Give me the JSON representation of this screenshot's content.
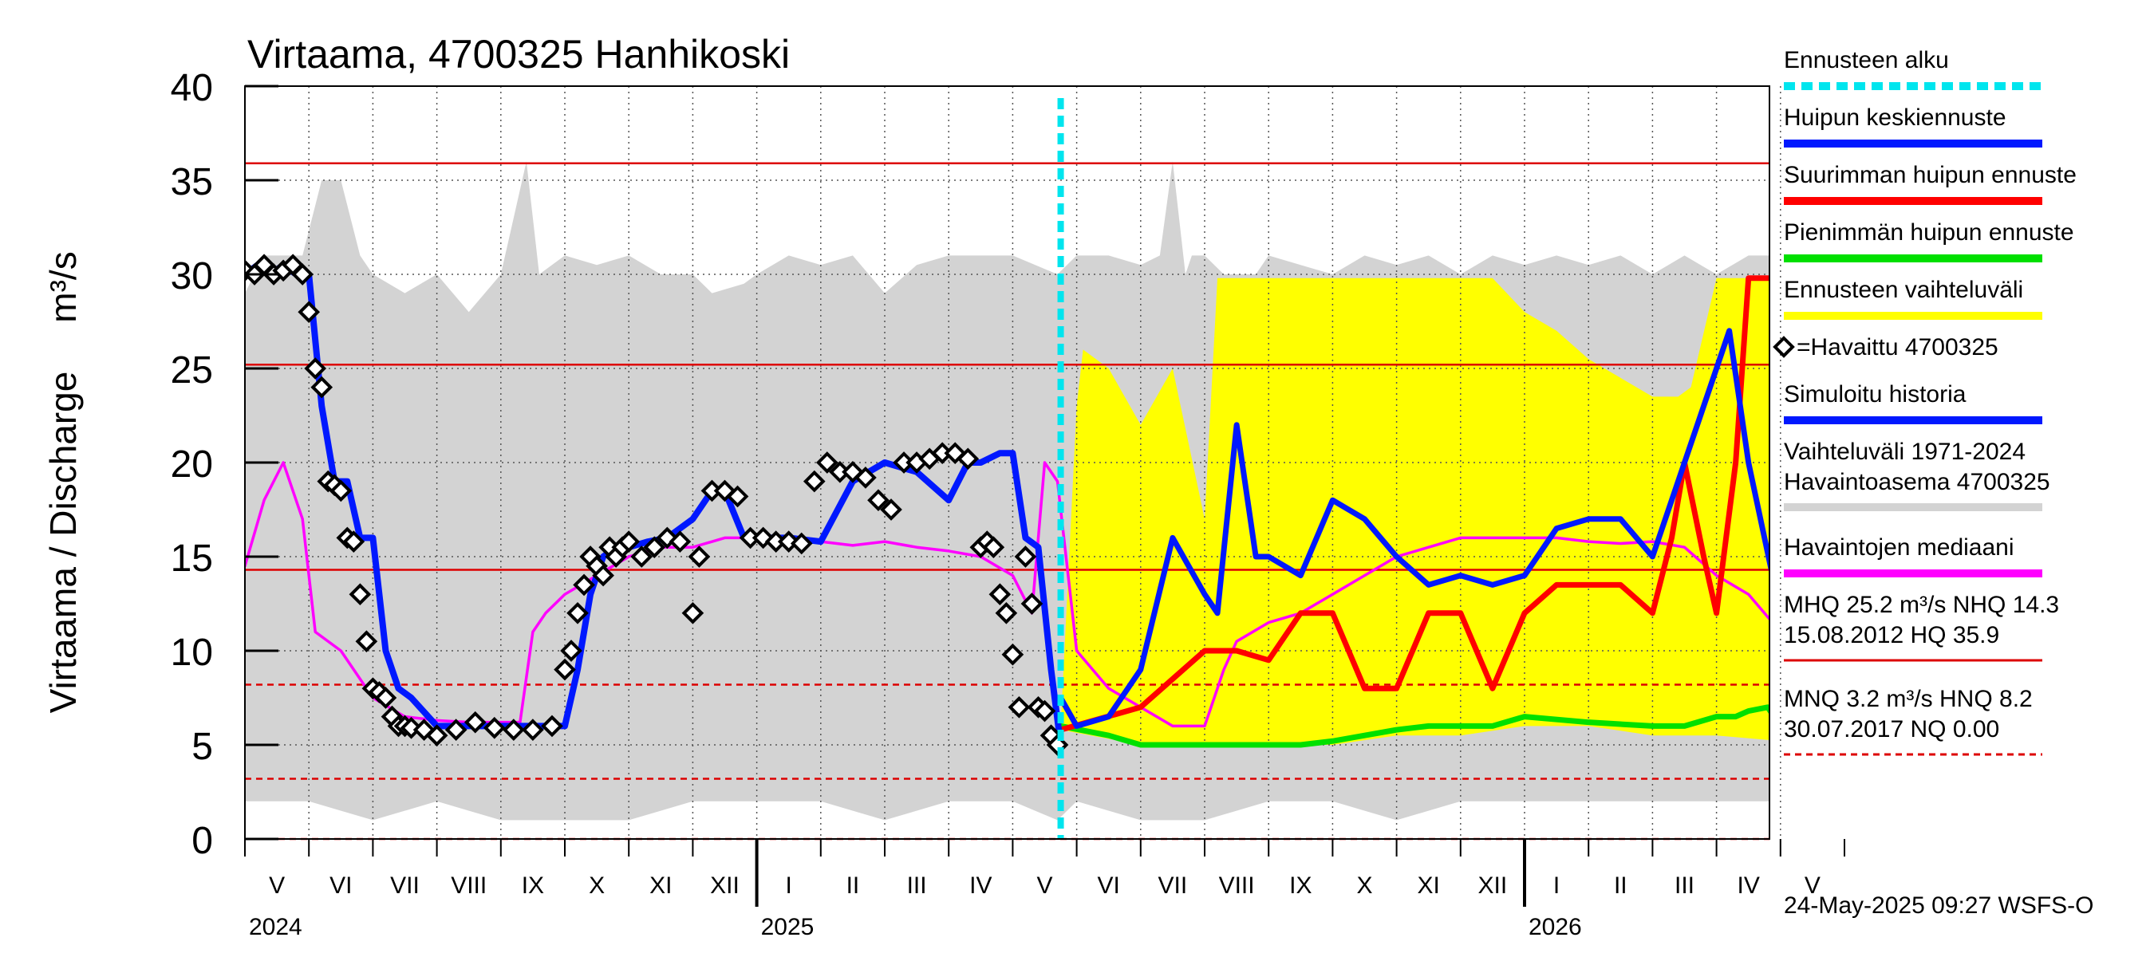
{
  "chart_data": {
    "type": "line",
    "title": "Virtaama, 4700325 Hanhikoski",
    "ylabel": "Virtaama / Discharge",
    "yunit": "m³/s",
    "ylim": [
      0,
      40
    ],
    "yticks": [
      0,
      5,
      10,
      15,
      20,
      25,
      30,
      35,
      40
    ],
    "xlim": [
      0,
      24.7
    ],
    "month_labels": [
      "V",
      "VI",
      "VII",
      "VIII",
      "IX",
      "X",
      "XI",
      "XII",
      "I",
      "II",
      "III",
      "IV",
      "V",
      "VI",
      "VII",
      "VIII",
      "IX",
      "X",
      "XI",
      "XII",
      "I",
      "II",
      "III",
      "IV",
      "V"
    ],
    "year_labels": [
      {
        "text": "2024",
        "x": 0
      },
      {
        "text": "2025",
        "x": 8
      },
      {
        "text": "2026",
        "x": 20
      }
    ],
    "forecast_start": 12.75,
    "colors": {
      "forecast_start": "#00e5ee",
      "mean_peak": "#0018ff",
      "max_peak": "#ff0000",
      "min_peak": "#00e000",
      "forecast_range": "#ffff00",
      "observed": "#000000",
      "simulated": "#0018ff",
      "hist_range": "#d3d3d3",
      "median": "#ff00ff",
      "ref_line": "#dd0000"
    },
    "legend": [
      {
        "key": "forecast_start",
        "label": "Ennusteen alku"
      },
      {
        "key": "mean_peak",
        "label": "Huipun keskiennuste"
      },
      {
        "key": "max_peak",
        "label": "Suurimman huipun ennuste"
      },
      {
        "key": "min_peak",
        "label": "Pienimmän huipun ennuste"
      },
      {
        "key": "forecast_range",
        "label": "Ennusteen vaihteluväli"
      },
      {
        "key": "observed",
        "label": "=Havaittu 4700325"
      },
      {
        "key": "simulated",
        "label": "Simuloitu historia"
      },
      {
        "key": "hist_range",
        "label": "Vaihteluväli 1971-2024",
        "label2": " Havaintoasema 4700325"
      },
      {
        "key": "median",
        "label": "Havaintojen mediaani"
      },
      {
        "key": "high_stats",
        "label": "MHQ 25.2 m³/s NHQ 14.3",
        "label2": "15.08.2012 HQ 35.9"
      },
      {
        "key": "low_stats",
        "label": "MNQ  3.2 m³/s HNQ  8.2",
        "label2": "30.07.2017 NQ 0.00"
      }
    ],
    "reference_lines": [
      {
        "name": "HQ",
        "value": 35.9,
        "style": "solid"
      },
      {
        "name": "MHQ",
        "value": 25.2,
        "style": "solid"
      },
      {
        "name": "NHQ",
        "value": 14.3,
        "style": "solid"
      },
      {
        "name": "HNQ",
        "value": 8.2,
        "style": "dashed"
      },
      {
        "name": "MNQ",
        "value": 3.2,
        "style": "dashed"
      },
      {
        "name": "NQ",
        "value": 0.0,
        "style": "dashed"
      }
    ],
    "series": {
      "hist_upper": {
        "x": [
          0,
          0.3,
          0.9,
          1.2,
          1.5,
          1.8,
          2.0,
          2.5,
          3.0,
          3.5,
          4.0,
          4.4,
          4.6,
          5.0,
          5.5,
          6.0,
          6.5,
          7.0,
          7.3,
          7.8,
          8.0,
          8.5,
          9.0,
          9.5,
          10.0,
          10.5,
          11.0,
          11.5,
          12.0,
          12.7,
          13.0,
          13.5,
          14.0,
          14.3,
          14.5,
          14.7,
          14.8,
          15.0,
          15.3,
          15.8,
          16.0,
          16.5,
          17.0,
          17.5,
          18.0,
          18.5,
          19.0,
          19.5,
          20.0,
          20.5,
          21.0,
          21.5,
          22.0,
          22.5,
          23.0,
          23.5,
          24.0,
          24.7
        ],
        "y": [
          29,
          31,
          31,
          35,
          35,
          31,
          30,
          29,
          30,
          28,
          30,
          36,
          30,
          31,
          30.5,
          31,
          30,
          30,
          29,
          29.5,
          30,
          31,
          30.5,
          31,
          29,
          30.5,
          31,
          31,
          31,
          30,
          31,
          31,
          30.5,
          31,
          36,
          30,
          31,
          31,
          30,
          30,
          31,
          30.5,
          30,
          31,
          30.5,
          31,
          30,
          31,
          30.5,
          31,
          30.5,
          31,
          30,
          31,
          30,
          31,
          31,
          30.5
        ]
      },
      "hist_lower": {
        "x": [
          0,
          1,
          2,
          3,
          4,
          5,
          6,
          7,
          8,
          9,
          10,
          11,
          12,
          12.7,
          13,
          14,
          15,
          16,
          17,
          18,
          19,
          20,
          21,
          22,
          23,
          24,
          24.7
        ],
        "y": [
          2,
          2,
          1,
          2,
          1,
          1,
          1,
          2,
          2,
          2,
          1,
          2,
          2,
          1,
          2,
          1,
          1,
          2,
          2,
          1,
          2,
          2,
          2,
          2,
          2,
          2,
          3
        ]
      },
      "forecast_upper": {
        "x": [
          12.75,
          13.0,
          13.1,
          13.5,
          14.0,
          14.5,
          15.0,
          15.2,
          15.5,
          16.0,
          16.5,
          17.0,
          17.5,
          18.0,
          18.5,
          19.0,
          19.5,
          20.0,
          20.5,
          21.0,
          21.5,
          22.0,
          22.4,
          22.6,
          23.0,
          24.0,
          24.7
        ],
        "y": [
          6,
          23,
          26,
          25,
          22,
          25,
          17,
          29.8,
          29.8,
          29.8,
          29.8,
          29.8,
          29.8,
          29.8,
          29.8,
          29.8,
          29.8,
          28,
          27,
          25.5,
          24.5,
          23.5,
          23.5,
          24,
          29.8,
          29.8,
          29.8
        ]
      },
      "forecast_lower": {
        "x": [
          12.75,
          14.0,
          15.0,
          16.0,
          17.0,
          18.0,
          19.0,
          20.0,
          21.0,
          22.0,
          23.0,
          24.0,
          24.7
        ],
        "y": [
          5.8,
          5,
          5,
          5,
          5,
          5.5,
          5.5,
          6,
          6,
          5.5,
          5.5,
          5.2,
          5.2
        ]
      },
      "median": {
        "x": [
          0,
          0.3,
          0.6,
          0.9,
          1.1,
          1.5,
          2.0,
          2.5,
          3.0,
          3.5,
          4.0,
          4.3,
          4.5,
          4.7,
          5.0,
          5.5,
          6.0,
          6.5,
          7.0,
          7.5,
          8.0,
          8.5,
          9.0,
          9.5,
          10.0,
          10.5,
          11.0,
          11.5,
          12.0,
          12.3,
          12.5,
          12.7,
          13.0,
          13.5,
          14.0,
          14.5,
          15.0,
          15.3,
          15.5,
          16.0,
          16.5,
          17.0,
          17.5,
          18.0,
          18.5,
          19.0,
          19.5,
          20.0,
          20.5,
          21.0,
          21.5,
          22.0,
          22.5,
          23.0,
          23.5,
          24.0,
          24.2,
          24.5,
          24.7
        ],
        "y": [
          14.5,
          18,
          20,
          17,
          11,
          10,
          7.5,
          6.5,
          6.3,
          6.2,
          6.2,
          6.2,
          11,
          12,
          13,
          14,
          15,
          15.5,
          15.5,
          16,
          16,
          15.7,
          15.8,
          15.6,
          15.8,
          15.5,
          15.3,
          15,
          14,
          12,
          20,
          19,
          10,
          8,
          7,
          6,
          6,
          9,
          10.5,
          11.5,
          12,
          13,
          14,
          15,
          15.5,
          16,
          16,
          16,
          16,
          15.8,
          15.7,
          15.8,
          15.5,
          14,
          13,
          11,
          19,
          19,
          19
        ]
      },
      "simulated": {
        "x": [
          0,
          0.2,
          0.4,
          0.6,
          0.8,
          1.0,
          1.2,
          1.4,
          1.6,
          1.8,
          2.0,
          2.2,
          2.4,
          2.6,
          3.0,
          3.5,
          4.0,
          4.5,
          5.0,
          5.2,
          5.4,
          5.6,
          5.8,
          6.0,
          6.3,
          6.6,
          7.0,
          7.3,
          7.5,
          7.8,
          8.0,
          8.5,
          9.0,
          9.5,
          10.0,
          10.5,
          11.0,
          11.3,
          11.5,
          11.8,
          12.0,
          12.2,
          12.4,
          12.6,
          12.75
        ],
        "y": [
          30,
          30.5,
          30,
          30.5,
          30,
          30,
          23,
          19,
          19,
          16,
          16,
          10,
          8,
          7.5,
          6,
          6,
          6,
          6,
          6,
          9,
          13,
          15,
          15.5,
          15.5,
          15.8,
          16,
          17,
          18.5,
          18.5,
          16,
          16,
          16,
          15.8,
          19,
          20,
          19.5,
          18,
          20,
          20,
          20.5,
          20.5,
          16,
          15.5,
          9,
          5
        ]
      },
      "mean_peak": {
        "x": [
          12.75,
          13.0,
          13.5,
          14.0,
          14.5,
          15.0,
          15.2,
          15.5,
          15.8,
          16.0,
          16.5,
          17.0,
          17.5,
          18.0,
          18.5,
          19.0,
          19.5,
          20.0,
          20.5,
          21.0,
          21.5,
          22.0,
          22.5,
          23.0,
          23.2,
          23.5,
          24.0,
          24.3,
          24.5,
          24.7
        ],
        "y": [
          7.5,
          6,
          6.5,
          9,
          16,
          13,
          12,
          22,
          15,
          15,
          14,
          18,
          17,
          15,
          13.5,
          14,
          13.5,
          14,
          16.5,
          17,
          17,
          15,
          20,
          25,
          27,
          20,
          12,
          9.5,
          9,
          8.5
        ]
      },
      "max_peak": {
        "x": [
          12.75,
          14.0,
          15.0,
          15.5,
          16.0,
          16.5,
          17.0,
          17.5,
          18.0,
          18.5,
          19.0,
          19.5,
          20.0,
          20.5,
          21.0,
          21.5,
          22.0,
          22.3,
          22.5,
          22.8,
          23.0,
          23.3,
          23.5,
          23.8,
          24.0,
          24.3,
          24.5,
          24.7
        ],
        "y": [
          5.8,
          7,
          10,
          10,
          9.5,
          12,
          12,
          8,
          8,
          12,
          12,
          8,
          12,
          13.5,
          13.5,
          13.5,
          12,
          16,
          20,
          15,
          12,
          20,
          29.8,
          29.8,
          29.8,
          29.8,
          29.8,
          29.8
        ]
      },
      "min_peak": {
        "x": [
          12.75,
          13.5,
          14.0,
          15.0,
          16.0,
          16.5,
          17.0,
          17.5,
          18.0,
          18.5,
          19.0,
          19.5,
          20.0,
          21.0,
          22.0,
          22.5,
          23.0,
          23.3,
          23.5,
          23.8,
          24.0,
          24.3,
          24.5,
          24.7
        ],
        "y": [
          6,
          5.5,
          5,
          5,
          5,
          5,
          5.2,
          5.5,
          5.8,
          6,
          6,
          6,
          6.5,
          6.2,
          6,
          6,
          6.5,
          6.5,
          6.8,
          7,
          6,
          5.5,
          5.5,
          5.3
        ]
      },
      "observed": {
        "x": [
          0,
          0.15,
          0.3,
          0.45,
          0.6,
          0.75,
          0.9,
          1.0,
          1.1,
          1.2,
          1.3,
          1.4,
          1.5,
          1.6,
          1.7,
          1.8,
          1.9,
          2.0,
          2.1,
          2.2,
          2.3,
          2.4,
          2.5,
          2.6,
          2.8,
          3.0,
          3.3,
          3.6,
          3.9,
          4.2,
          4.5,
          4.8,
          5.0,
          5.1,
          5.2,
          5.3,
          5.4,
          5.5,
          5.6,
          5.7,
          5.8,
          5.9,
          6.0,
          6.2,
          6.4,
          6.6,
          6.8,
          7.0,
          7.1,
          7.3,
          7.5,
          7.7,
          7.9,
          8.1,
          8.3,
          8.5,
          8.7,
          8.9,
          9.1,
          9.3,
          9.5,
          9.7,
          9.9,
          10.1,
          10.3,
          10.5,
          10.7,
          10.9,
          11.1,
          11.3,
          11.5,
          11.6,
          11.7,
          11.8,
          11.9,
          12.0,
          12.1,
          12.2,
          12.3,
          12.4,
          12.5,
          12.6,
          12.7
        ],
        "y": [
          30.2,
          30,
          30.5,
          30,
          30.2,
          30.5,
          30,
          28,
          25,
          24,
          19,
          18.8,
          18.5,
          16,
          15.8,
          13,
          10.5,
          8,
          7.8,
          7.5,
          6.5,
          6,
          6,
          5.9,
          5.8,
          5.5,
          5.8,
          6.2,
          5.9,
          5.8,
          5.8,
          6,
          9,
          10,
          12,
          13.5,
          15,
          14.5,
          14,
          15.5,
          15,
          15.5,
          15.8,
          15,
          15.5,
          16,
          15.8,
          12,
          15,
          18.5,
          18.5,
          18.2,
          16,
          16,
          15.8,
          15.8,
          15.7,
          19,
          20,
          19.5,
          19.5,
          19.2,
          18,
          17.5,
          20,
          20,
          20.2,
          20.5,
          20.5,
          20.2,
          15.5,
          15.8,
          15.5,
          13,
          12,
          9.8,
          7,
          15,
          12.5,
          7,
          6.8,
          5.5,
          5
        ]
      }
    },
    "footer": "24-May-2025 09:27 WSFS-O"
  }
}
